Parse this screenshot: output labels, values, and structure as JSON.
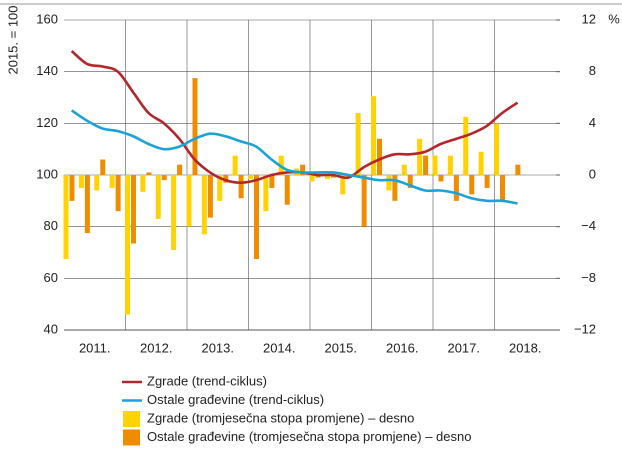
{
  "chart_data": {
    "type": "combo",
    "ylabel": "2015. = 100",
    "y2label": "%",
    "categories": [
      null,
      null,
      null,
      null,
      null,
      null,
      null,
      null,
      null,
      null,
      null,
      null,
      null,
      null,
      null,
      null,
      null,
      null,
      null,
      null,
      null,
      null,
      null,
      null,
      null,
      null,
      null,
      null,
      null,
      null
    ],
    "x_labels": [
      "2011.",
      "2012.",
      "2013.",
      "2014.",
      "2015.",
      "2016.",
      "2017.",
      "2018."
    ],
    "ylim": [
      40,
      160
    ],
    "yticks": [
      40,
      60,
      80,
      100,
      120,
      140,
      160
    ],
    "y2lim": [
      -12,
      12
    ],
    "y2ticks": [
      {
        "value": -12,
        "label": "−12"
      },
      {
        "value": -8,
        "label": "−8"
      },
      {
        "value": -4,
        "label": "−4"
      },
      0,
      4,
      8,
      12
    ],
    "grid": true,
    "series": [
      {
        "name": "Zgrade (trend-ciklus)",
        "type": "line",
        "color": "#b3262c",
        "values": [
          148,
          143,
          142,
          140,
          132,
          124,
          120,
          114,
          106,
          101,
          98,
          97,
          98,
          100,
          101,
          101,
          100,
          100,
          99,
          103,
          106,
          108,
          108,
          109,
          112,
          114,
          116,
          119,
          124,
          128
        ]
      },
      {
        "name": "Ostale građevine (trend-ciklus)",
        "type": "line",
        "color": "#1ba3d9",
        "values": [
          125,
          121,
          118,
          117,
          115,
          112,
          110,
          111,
          114,
          116,
          115,
          113,
          111,
          106,
          102,
          101,
          101,
          101,
          100,
          99,
          98,
          98,
          96,
          94,
          94,
          93,
          91,
          90,
          90,
          89
        ]
      },
      {
        "name": "Zgrade (tromjesečna stopa promjene) – desno",
        "type": "bar",
        "axis": "y2",
        "color": "#ffd200",
        "values": [
          -6.5,
          -1,
          -1.2,
          -1,
          -10.8,
          -1.3,
          -3.4,
          -5.8,
          -4,
          -4.6,
          -2,
          1.5,
          -0.3,
          -2.8,
          1.5,
          0.5,
          -0.5,
          -0.3,
          -1.5,
          4.8,
          6.1,
          -1.2,
          0.8,
          2.8,
          1.5,
          1.5,
          4.5,
          1.8,
          4,
          0
        ]
      },
      {
        "name": "Ostale građevine (tromjesečna stopa promjene) – desno",
        "type": "bar",
        "axis": "y2",
        "color": "#f08c00",
        "values": [
          -2,
          -4.5,
          1.2,
          -2.8,
          -5.3,
          0.2,
          -0.4,
          0.8,
          7.5,
          -3.3,
          -0.6,
          -1.8,
          -6.5,
          -1,
          -2.3,
          0.8,
          -0.2,
          -0.2,
          -0.2,
          -4,
          2.8,
          -2,
          -1,
          1.5,
          -0.5,
          -2,
          -1.5,
          -1,
          -2,
          0.8
        ]
      }
    ]
  }
}
